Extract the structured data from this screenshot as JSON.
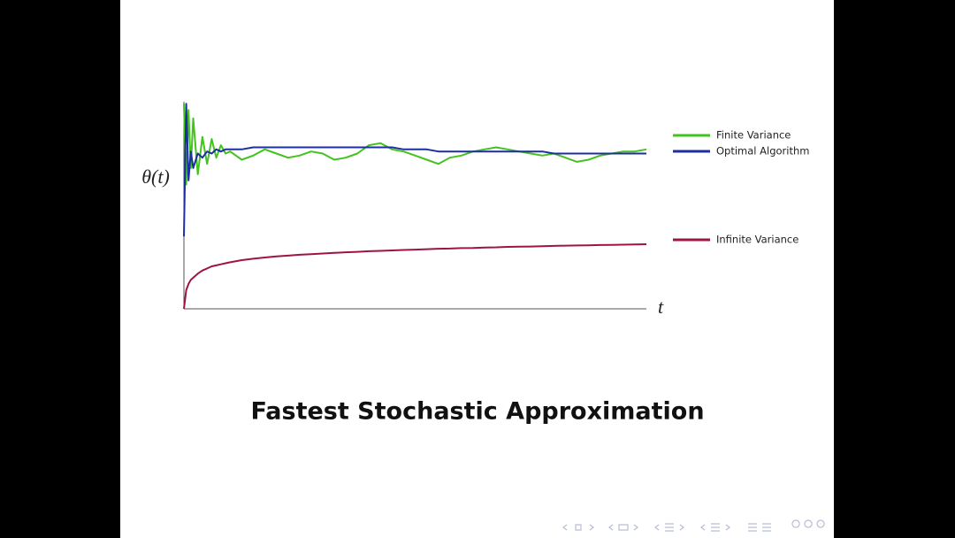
{
  "chart_data": {
    "type": "line",
    "title": "Fastest Stochastic Approximation",
    "y_label": "θ(t)",
    "x_label": "t",
    "x": [
      0,
      0.5,
      1,
      1.5,
      2,
      3,
      4,
      5,
      6,
      7,
      8,
      9,
      10,
      12.5,
      15,
      17.5,
      20,
      22.5,
      25,
      27.5,
      30,
      32.5,
      35,
      37.5,
      40,
      42.5,
      45,
      47.5,
      50,
      52.5,
      55,
      57.5,
      60,
      62.5,
      65,
      67.5,
      70,
      72.5,
      75,
      77.5,
      80,
      82.5,
      85,
      87.5,
      90,
      92.5,
      95,
      97.5,
      100
    ],
    "xlim": [
      0,
      100
    ],
    "ylim": [
      0,
      10
    ],
    "series": [
      {
        "name": "Finite Variance",
        "color": "#44c21f",
        "values": [
          9.9,
          6.0,
          9.6,
          6.8,
          9.2,
          6.5,
          8.3,
          7.0,
          8.2,
          7.3,
          7.9,
          7.5,
          7.6,
          7.2,
          7.4,
          7.7,
          7.5,
          7.3,
          7.4,
          7.6,
          7.5,
          7.2,
          7.3,
          7.5,
          7.9,
          8.0,
          7.7,
          7.6,
          7.4,
          7.2,
          7.0,
          7.3,
          7.4,
          7.6,
          7.7,
          7.8,
          7.7,
          7.6,
          7.5,
          7.4,
          7.5,
          7.3,
          7.1,
          7.2,
          7.4,
          7.5,
          7.6,
          7.6,
          7.7
        ]
      },
      {
        "name": "Optimal Algorithm",
        "color": "#1c2fa0",
        "values": [
          3.5,
          9.9,
          6.2,
          7.6,
          6.8,
          7.5,
          7.3,
          7.6,
          7.5,
          7.7,
          7.6,
          7.7,
          7.7,
          7.7,
          7.8,
          7.8,
          7.8,
          7.8,
          7.8,
          7.8,
          7.8,
          7.8,
          7.8,
          7.8,
          7.8,
          7.8,
          7.8,
          7.7,
          7.7,
          7.7,
          7.6,
          7.6,
          7.6,
          7.6,
          7.6,
          7.6,
          7.6,
          7.6,
          7.6,
          7.6,
          7.5,
          7.5,
          7.5,
          7.5,
          7.5,
          7.5,
          7.5,
          7.5,
          7.5
        ]
      },
      {
        "name": "Infinite Variance",
        "color": "#9e1444",
        "values": [
          0,
          0.9,
          1.2,
          1.4,
          1.5,
          1.7,
          1.85,
          1.95,
          2.05,
          2.1,
          2.15,
          2.2,
          2.25,
          2.35,
          2.42,
          2.48,
          2.53,
          2.57,
          2.61,
          2.64,
          2.67,
          2.7,
          2.73,
          2.75,
          2.78,
          2.8,
          2.82,
          2.84,
          2.86,
          2.88,
          2.9,
          2.91,
          2.93,
          2.94,
          2.96,
          2.97,
          2.99,
          3.0,
          3.01,
          3.02,
          3.04,
          3.05,
          3.06,
          3.07,
          3.08,
          3.09,
          3.1,
          3.11,
          3.12
        ]
      }
    ]
  }
}
